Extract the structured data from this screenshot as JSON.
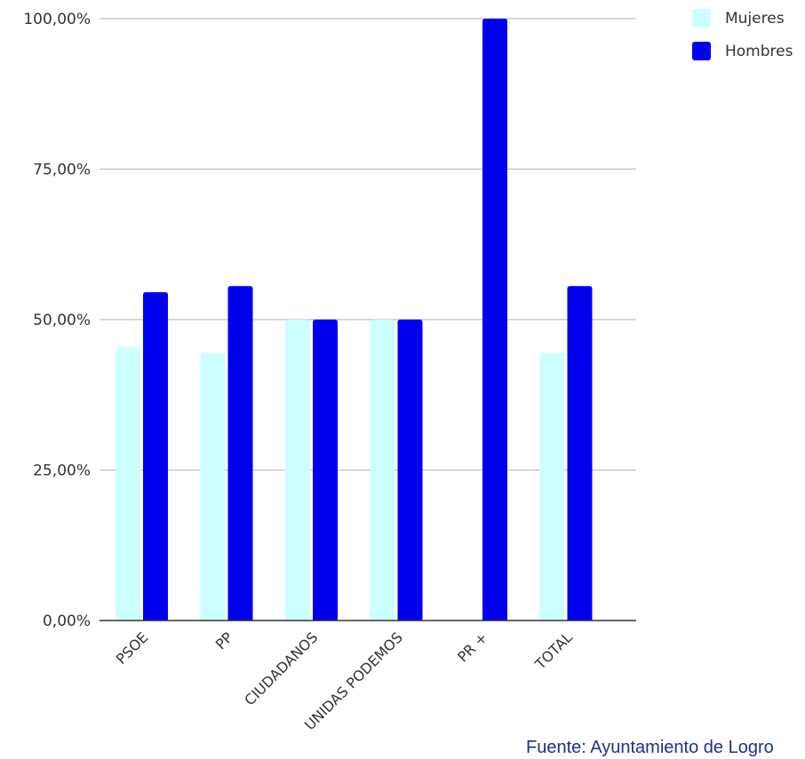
{
  "chart_data": {
    "type": "bar",
    "title": "",
    "xlabel": "",
    "ylabel": "",
    "categories": [
      "PSOE",
      "PP",
      "CIUDADANOS",
      "UNIDAS PODEMOS",
      "PR +",
      "TOTAL"
    ],
    "series": [
      {
        "name": "Mujeres",
        "color": "#ccffff",
        "values": [
          45.45,
          44.44,
          50.0,
          50.0,
          0.0,
          44.44
        ]
      },
      {
        "name": "Hombres",
        "color": "#0000ee",
        "values": [
          54.55,
          55.56,
          50.0,
          50.0,
          100.0,
          55.56
        ]
      }
    ],
    "ylim": [
      0,
      100
    ],
    "yticks": [
      0,
      25,
      50,
      75,
      100
    ],
    "ytick_labels": [
      "0,00%",
      "25,00%",
      "50,00%",
      "75,00%",
      "100,00%"
    ],
    "grid": true,
    "legend": "top-right",
    "source": "Fuente: Ayuntamiento de Logro"
  }
}
